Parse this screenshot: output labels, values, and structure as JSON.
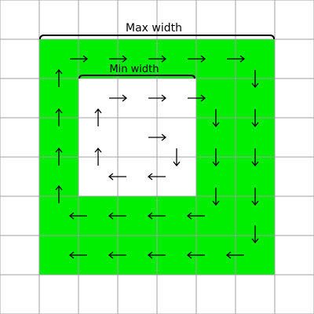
{
  "labels": {
    "max_width": "Max width",
    "min_width": "Min width"
  },
  "colors": {
    "fill": "#00ee00",
    "grid": "#a0a0a0",
    "background": "#ffffff",
    "ink": "#000000"
  },
  "arrows": [
    {
      "col": 1,
      "row": 1,
      "dir": "right"
    },
    {
      "col": 2,
      "row": 1,
      "dir": "right"
    },
    {
      "col": 3,
      "row": 1,
      "dir": "right"
    },
    {
      "col": 4,
      "row": 1,
      "dir": "right"
    },
    {
      "col": 5,
      "row": 1,
      "dir": "right"
    },
    {
      "col": 6,
      "row": 1,
      "dir": "down"
    },
    {
      "col": 1,
      "row": 1.5,
      "dir": "up"
    },
    {
      "col": 1,
      "row": 2.5,
      "dir": "up"
    },
    {
      "col": 1,
      "row": 3.5,
      "dir": "up"
    },
    {
      "col": 1,
      "row": 4.5,
      "dir": "up"
    },
    {
      "col": 2,
      "row": 2,
      "dir": "right"
    },
    {
      "col": 3,
      "row": 2,
      "dir": "right"
    },
    {
      "col": 4,
      "row": 2,
      "dir": "right"
    },
    {
      "col": 2,
      "row": 2.5,
      "dir": "up"
    },
    {
      "col": 2,
      "row": 3.5,
      "dir": "up"
    },
    {
      "col": 3,
      "row": 3,
      "dir": "right"
    },
    {
      "col": 3.5,
      "row": 3.5,
      "dir": "down"
    },
    {
      "col": 2,
      "row": 4,
      "dir": "left"
    },
    {
      "col": 3,
      "row": 4,
      "dir": "left"
    },
    {
      "col": 5,
      "row": 2.5,
      "dir": "down"
    },
    {
      "col": 5,
      "row": 3.5,
      "dir": "down"
    },
    {
      "col": 5,
      "row": 4.5,
      "dir": "down"
    },
    {
      "col": 6,
      "row": 2.5,
      "dir": "down"
    },
    {
      "col": 6,
      "row": 3.5,
      "dir": "down"
    },
    {
      "col": 6,
      "row": 4.5,
      "dir": "down"
    },
    {
      "col": 6,
      "row": 5.5,
      "dir": "down"
    },
    {
      "col": 1,
      "row": 5,
      "dir": "left"
    },
    {
      "col": 2,
      "row": 5,
      "dir": "left"
    },
    {
      "col": 3,
      "row": 5,
      "dir": "left"
    },
    {
      "col": 4,
      "row": 5,
      "dir": "left"
    },
    {
      "col": 1,
      "row": 6,
      "dir": "left"
    },
    {
      "col": 2,
      "row": 6,
      "dir": "left"
    },
    {
      "col": 3,
      "row": 6,
      "dir": "left"
    },
    {
      "col": 4,
      "row": 6,
      "dir": "left"
    },
    {
      "col": 5,
      "row": 6,
      "dir": "left"
    }
  ]
}
